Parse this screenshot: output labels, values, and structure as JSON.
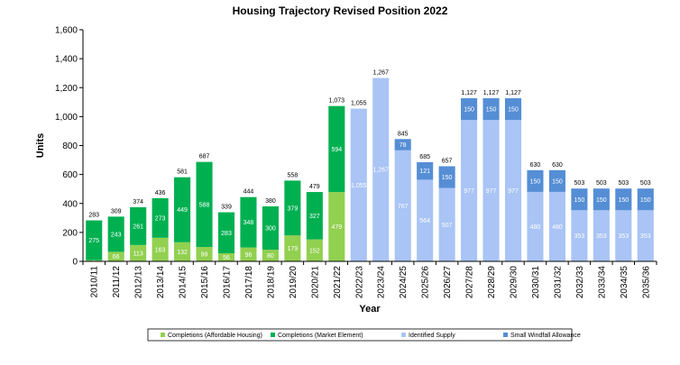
{
  "chart_data": {
    "type": "bar",
    "stacked": true,
    "title": "Housing Trajectory Revised Position 2022",
    "xlabel": "Year",
    "ylabel": "Units",
    "ylim": [
      0,
      1600
    ],
    "yticks": [
      "0",
      "200",
      "400",
      "600",
      "800",
      "1,000",
      "1,200",
      "1,400",
      "1,600"
    ],
    "ytick_values": [
      0,
      200,
      400,
      600,
      800,
      1000,
      1200,
      1400,
      1600
    ],
    "legend_position": "bottom",
    "grid": false,
    "categories": [
      "2010/11",
      "2011/12",
      "2012/13",
      "2013/14",
      "2014/15",
      "2015/16",
      "2016/17",
      "2017/18",
      "2018/19",
      "2019/20",
      "2020/21",
      "2021/22",
      "2022/23",
      "2023/24",
      "2024/25",
      "2025/26",
      "2026/27",
      "2027/28",
      "2028/29",
      "2029/30",
      "2030/31",
      "2031/32",
      "2032/33",
      "2033/34",
      "2034/35",
      "2035/36"
    ],
    "series": [
      {
        "name": "Completions (Affordable Housing)",
        "color": "#92D050",
        "values": [
          8,
          66,
          113,
          163,
          132,
          99,
          56,
          96,
          80,
          179,
          152,
          479,
          0,
          0,
          0,
          0,
          0,
          0,
          0,
          0,
          0,
          0,
          0,
          0,
          0,
          0
        ],
        "labels": [
          "8",
          "66",
          "113",
          "163",
          "132",
          "99",
          "56",
          "96",
          "80",
          "179",
          "152",
          "479",
          "",
          "",
          "",
          "",
          "",
          "",
          "",
          "",
          "",
          "",
          "",
          "",
          "",
          ""
        ]
      },
      {
        "name": "Completions (Market Element)",
        "color": "#00B050",
        "values": [
          275,
          243,
          261,
          273,
          449,
          588,
          283,
          348,
          300,
          379,
          327,
          594,
          0,
          0,
          0,
          0,
          0,
          0,
          0,
          0,
          0,
          0,
          0,
          0,
          0,
          0
        ],
        "labels": [
          "275",
          "243",
          "261",
          "273",
          "449",
          "588",
          "283",
          "348",
          "300",
          "379",
          "327",
          "594",
          "",
          "",
          "",
          "",
          "",
          "",
          "",
          "",
          "",
          "",
          "",
          "",
          "",
          ""
        ]
      },
      {
        "name": "Identified Supply",
        "color": "#A9C4F5",
        "values": [
          0,
          0,
          0,
          0,
          0,
          0,
          0,
          0,
          0,
          0,
          0,
          0,
          1055,
          1267,
          767,
          564,
          507,
          977,
          977,
          977,
          480,
          480,
          353,
          353,
          353,
          353
        ],
        "labels": [
          "",
          "",
          "",
          "",
          "",
          "",
          "",
          "",
          "",
          "",
          "",
          "",
          "1,055",
          "1,267",
          "767",
          "564",
          "507",
          "977",
          "977",
          "977",
          "480",
          "480",
          "353",
          "353",
          "353",
          "353"
        ]
      },
      {
        "name": "Small Windfall Allowance",
        "color": "#558ED5",
        "values": [
          0,
          0,
          0,
          0,
          0,
          0,
          0,
          0,
          0,
          0,
          0,
          0,
          0,
          0,
          78,
          121,
          150,
          150,
          150,
          150,
          150,
          150,
          150,
          150,
          150,
          150
        ],
        "labels": [
          "",
          "",
          "",
          "",
          "",
          "",
          "",
          "",
          "",
          "",
          "",
          "",
          "",
          "",
          "78",
          "121",
          "150",
          "150",
          "150",
          "150",
          "150",
          "150",
          "150",
          "150",
          "150",
          "150"
        ]
      }
    ],
    "totals": [
      "283",
      "309",
      "374",
      "436",
      "581",
      "687",
      "339",
      "444",
      "380",
      "558",
      "479",
      "1,073",
      "1,055",
      "1,267",
      "845",
      "685",
      "657",
      "1,127",
      "1,127",
      "1,127",
      "630",
      "630",
      "503",
      "503",
      "503",
      "503"
    ]
  }
}
